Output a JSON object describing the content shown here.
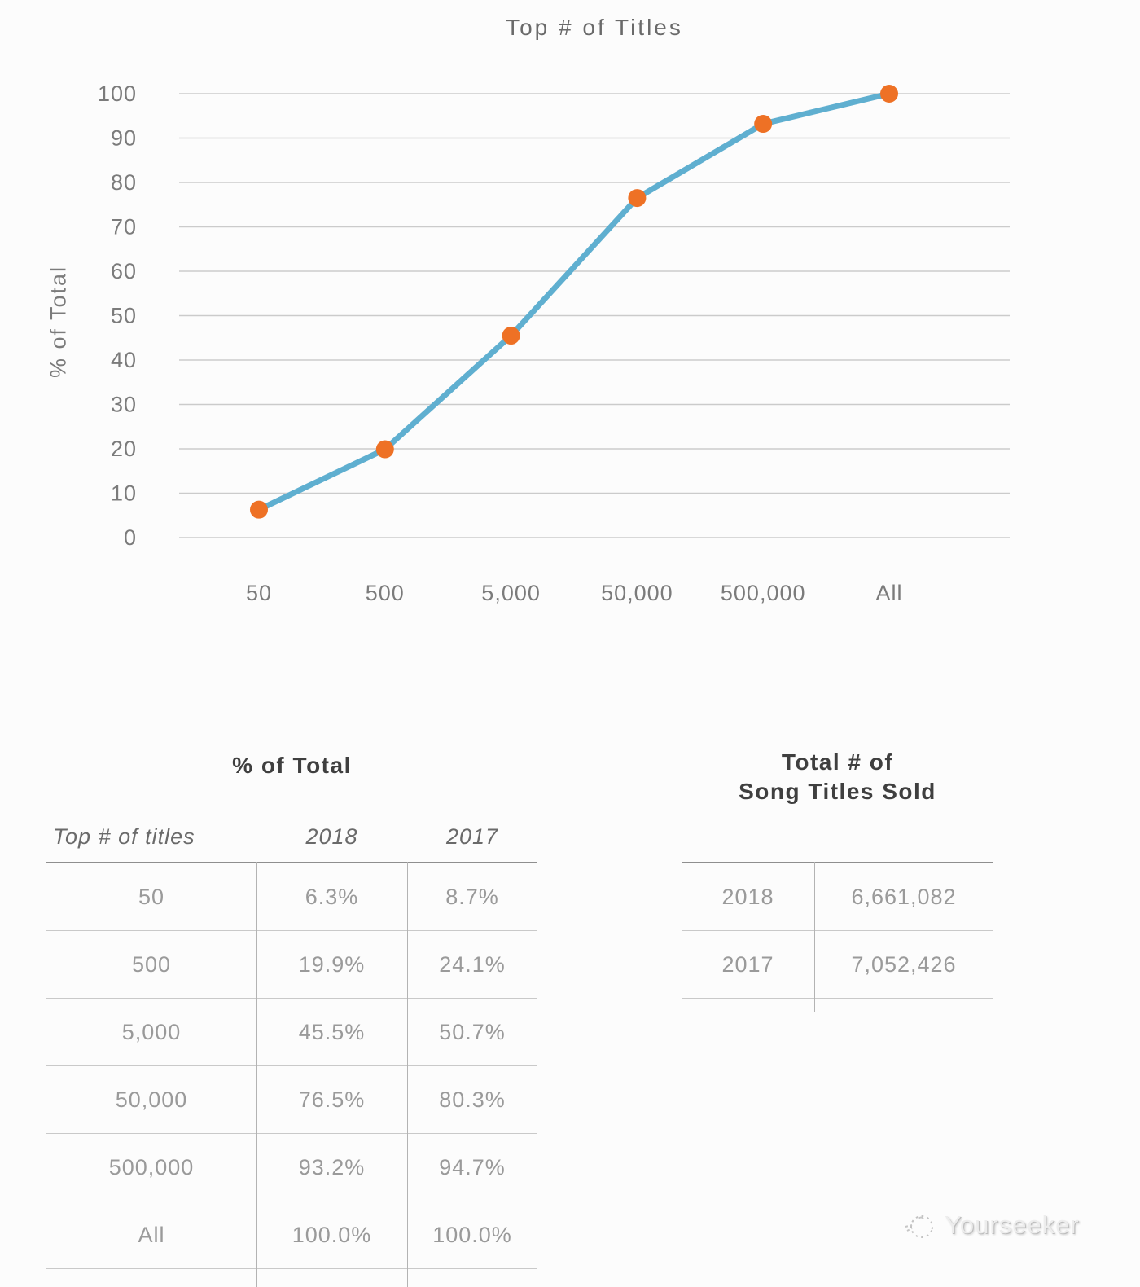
{
  "chart_data": {
    "type": "line",
    "title": "Top # of Titles",
    "xlabel": "",
    "ylabel": "% of Total",
    "categories": [
      "50",
      "500",
      "5,000",
      "50,000",
      "500,000",
      "All"
    ],
    "series": [
      {
        "name": "2018",
        "values": [
          6.3,
          19.9,
          45.5,
          76.5,
          93.2,
          100.0
        ]
      }
    ],
    "ylim": [
      0,
      100
    ],
    "ytick_step": 10,
    "grid": true,
    "legend_position": "none",
    "line_color": "#5fafd0",
    "marker_color": "#ee7125",
    "gridline_color": "#cbcbcb"
  },
  "tables": {
    "percent_of_total": {
      "title": "% of Total",
      "columns": [
        "Top # of titles",
        "2018",
        "2017"
      ],
      "rows": [
        [
          "50",
          "6.3%",
          "8.7%"
        ],
        [
          "500",
          "19.9%",
          "24.1%"
        ],
        [
          "5,000",
          "45.5%",
          "50.7%"
        ],
        [
          "50,000",
          "76.5%",
          "80.3%"
        ],
        [
          "500,000",
          "93.2%",
          "94.7%"
        ],
        [
          "All",
          "100.0%",
          "100.0%"
        ]
      ]
    },
    "total_sold": {
      "title": [
        "Total # of",
        "Song Titles Sold"
      ],
      "rows": [
        [
          "2018",
          "6,661,082"
        ],
        [
          "2017",
          "7,052,426"
        ]
      ]
    }
  },
  "watermark": {
    "label": "Yourseeker",
    "icon": "sketch-circle-logo-icon"
  }
}
